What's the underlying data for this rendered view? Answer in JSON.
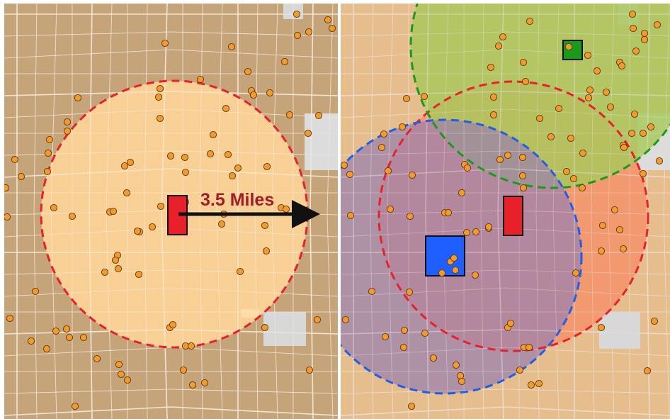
{
  "left_panel": {
    "distance_label": "3.5 Miles",
    "circle_color": "#e8202a",
    "circle_fill": "#ffd699",
    "store_color": "#e8202a"
  },
  "right_panel": {
    "red_store_color": "#e8202a",
    "blue_store_color": "#1f5fff",
    "green_store_color": "#1a9a1a",
    "red_zone_fill": "#f59a76",
    "blue_zone_fill": "#a67fa5",
    "green_zone_fill": "#a8c85a"
  },
  "map_colors": {
    "base": "#c8a57c",
    "roads": "#e8dcc8",
    "points": "#f39a2a"
  }
}
